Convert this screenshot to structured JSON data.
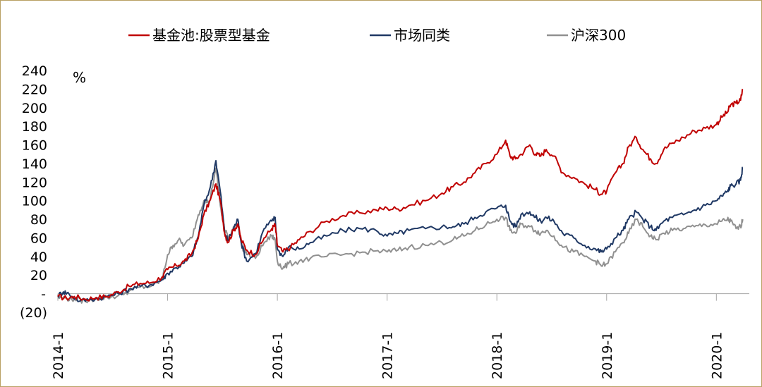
{
  "chart_data": {
    "type": "line",
    "unit_label": "%",
    "y_ticks": [
      "240",
      "220",
      "200",
      "180",
      "160",
      "140",
      "120",
      "100",
      "80",
      "60",
      "40",
      "20",
      "-",
      "(20)"
    ],
    "y_tick_values": [
      240,
      220,
      200,
      180,
      160,
      140,
      120,
      100,
      80,
      60,
      40,
      20,
      0,
      -20
    ],
    "ylim": [
      -20,
      240
    ],
    "x_ticks": [
      "2014-1",
      "2015-1",
      "2016-1",
      "2017-1",
      "2018-1",
      "2019-1",
      "2020-1"
    ],
    "x_tick_values": [
      2014.0,
      2015.0,
      2016.0,
      2017.0,
      2018.0,
      2019.0,
      2020.0
    ],
    "xlim": [
      2014.0,
      2021.0
    ],
    "legend_position": "top",
    "series": [
      {
        "name": "基金池:股票型基金",
        "color": "#c00000",
        "points": [
          [
            2014.0,
            -3
          ],
          [
            2014.08,
            -5
          ],
          [
            2014.15,
            -3
          ],
          [
            2014.25,
            -6
          ],
          [
            2014.35,
            -4
          ],
          [
            2014.45,
            -3
          ],
          [
            2014.55,
            2
          ],
          [
            2014.65,
            8
          ],
          [
            2014.75,
            11
          ],
          [
            2014.85,
            12
          ],
          [
            2014.95,
            18
          ],
          [
            2015.0,
            26
          ],
          [
            2015.08,
            30
          ],
          [
            2015.15,
            35
          ],
          [
            2015.22,
            43
          ],
          [
            2015.28,
            60
          ],
          [
            2015.33,
            85
          ],
          [
            2015.39,
            101
          ],
          [
            2015.44,
            118
          ],
          [
            2015.48,
            100
          ],
          [
            2015.52,
            65
          ],
          [
            2015.55,
            55
          ],
          [
            2015.6,
            68
          ],
          [
            2015.64,
            75
          ],
          [
            2015.67,
            58
          ],
          [
            2015.72,
            47
          ],
          [
            2015.8,
            42
          ],
          [
            2015.88,
            60
          ],
          [
            2015.95,
            70
          ],
          [
            2015.98,
            74
          ],
          [
            2016.0,
            52
          ],
          [
            2016.05,
            45
          ],
          [
            2016.12,
            50
          ],
          [
            2016.2,
            58
          ],
          [
            2016.3,
            67
          ],
          [
            2016.45,
            78
          ],
          [
            2016.6,
            84
          ],
          [
            2016.75,
            87
          ],
          [
            2016.9,
            90
          ],
          [
            2017.0,
            92
          ],
          [
            2017.1,
            91
          ],
          [
            2017.2,
            95
          ],
          [
            2017.35,
            100
          ],
          [
            2017.5,
            108
          ],
          [
            2017.6,
            115
          ],
          [
            2017.7,
            120
          ],
          [
            2017.8,
            130
          ],
          [
            2017.9,
            140
          ],
          [
            2018.0,
            150
          ],
          [
            2018.08,
            165
          ],
          [
            2018.12,
            148
          ],
          [
            2018.17,
            145
          ],
          [
            2018.22,
            150
          ],
          [
            2018.3,
            160
          ],
          [
            2018.35,
            150
          ],
          [
            2018.4,
            148
          ],
          [
            2018.45,
            155
          ],
          [
            2018.52,
            148
          ],
          [
            2018.6,
            130
          ],
          [
            2018.7,
            125
          ],
          [
            2018.8,
            118
          ],
          [
            2018.9,
            112
          ],
          [
            2018.95,
            107
          ],
          [
            2019.0,
            110
          ],
          [
            2019.08,
            130
          ],
          [
            2019.15,
            140
          ],
          [
            2019.2,
            158
          ],
          [
            2019.27,
            168
          ],
          [
            2019.33,
            155
          ],
          [
            2019.4,
            145
          ],
          [
            2019.45,
            140
          ],
          [
            2019.52,
            155
          ],
          [
            2019.6,
            162
          ],
          [
            2019.7,
            168
          ],
          [
            2019.8,
            175
          ],
          [
            2019.9,
            178
          ],
          [
            2020.0,
            182
          ],
          [
            2020.05,
            190
          ],
          [
            2020.1,
            195
          ],
          [
            2020.13,
            203
          ],
          [
            2020.18,
            205
          ],
          [
            2020.22,
            208
          ],
          [
            2020.24,
            220
          ]
        ]
      },
      {
        "name": "市场同类",
        "color": "#1f3864",
        "points": [
          [
            2014.0,
            -2
          ],
          [
            2014.05,
            2
          ],
          [
            2014.1,
            0
          ],
          [
            2014.2,
            -8
          ],
          [
            2014.3,
            -6
          ],
          [
            2014.45,
            -3
          ],
          [
            2014.55,
            0
          ],
          [
            2014.65,
            5
          ],
          [
            2014.75,
            8
          ],
          [
            2014.85,
            10
          ],
          [
            2014.95,
            15
          ],
          [
            2015.0,
            22
          ],
          [
            2015.08,
            28
          ],
          [
            2015.15,
            33
          ],
          [
            2015.22,
            40
          ],
          [
            2015.28,
            62
          ],
          [
            2015.33,
            95
          ],
          [
            2015.39,
            115
          ],
          [
            2015.44,
            143
          ],
          [
            2015.48,
            110
          ],
          [
            2015.52,
            65
          ],
          [
            2015.55,
            57
          ],
          [
            2015.6,
            70
          ],
          [
            2015.64,
            80
          ],
          [
            2015.67,
            55
          ],
          [
            2015.72,
            35
          ],
          [
            2015.8,
            43
          ],
          [
            2015.88,
            70
          ],
          [
            2015.95,
            78
          ],
          [
            2015.98,
            82
          ],
          [
            2016.0,
            48
          ],
          [
            2016.05,
            40
          ],
          [
            2016.1,
            50
          ],
          [
            2016.2,
            48
          ],
          [
            2016.3,
            55
          ],
          [
            2016.45,
            62
          ],
          [
            2016.6,
            68
          ],
          [
            2016.75,
            70
          ],
          [
            2016.9,
            68
          ],
          [
            2017.0,
            62
          ],
          [
            2017.1,
            65
          ],
          [
            2017.2,
            68
          ],
          [
            2017.35,
            70
          ],
          [
            2017.5,
            72
          ],
          [
            2017.6,
            72
          ],
          [
            2017.7,
            75
          ],
          [
            2017.8,
            82
          ],
          [
            2017.9,
            88
          ],
          [
            2018.0,
            92
          ],
          [
            2018.08,
            95
          ],
          [
            2018.12,
            78
          ],
          [
            2018.17,
            72
          ],
          [
            2018.22,
            85
          ],
          [
            2018.3,
            88
          ],
          [
            2018.35,
            82
          ],
          [
            2018.4,
            78
          ],
          [
            2018.45,
            82
          ],
          [
            2018.52,
            78
          ],
          [
            2018.6,
            65
          ],
          [
            2018.7,
            60
          ],
          [
            2018.8,
            52
          ],
          [
            2018.9,
            48
          ],
          [
            2018.95,
            45
          ],
          [
            2019.0,
            48
          ],
          [
            2019.08,
            60
          ],
          [
            2019.15,
            68
          ],
          [
            2019.2,
            80
          ],
          [
            2019.27,
            88
          ],
          [
            2019.33,
            80
          ],
          [
            2019.4,
            72
          ],
          [
            2019.45,
            68
          ],
          [
            2019.52,
            78
          ],
          [
            2019.6,
            82
          ],
          [
            2019.7,
            85
          ],
          [
            2019.8,
            90
          ],
          [
            2019.9,
            95
          ],
          [
            2020.0,
            100
          ],
          [
            2020.05,
            105
          ],
          [
            2020.1,
            110
          ],
          [
            2020.13,
            116
          ],
          [
            2020.18,
            118
          ],
          [
            2020.22,
            122
          ],
          [
            2020.24,
            136
          ]
        ]
      },
      {
        "name": "沪深300",
        "color": "#909090",
        "points": [
          [
            2014.0,
            -4
          ],
          [
            2014.08,
            -5
          ],
          [
            2014.15,
            -6
          ],
          [
            2014.25,
            -8
          ],
          [
            2014.35,
            -5
          ],
          [
            2014.45,
            -4
          ],
          [
            2014.55,
            -2
          ],
          [
            2014.65,
            3
          ],
          [
            2014.75,
            7
          ],
          [
            2014.85,
            8
          ],
          [
            2014.95,
            15
          ],
          [
            2015.0,
            42
          ],
          [
            2015.05,
            52
          ],
          [
            2015.1,
            58
          ],
          [
            2015.15,
            52
          ],
          [
            2015.22,
            60
          ],
          [
            2015.28,
            85
          ],
          [
            2015.33,
            100
          ],
          [
            2015.38,
            98
          ],
          [
            2015.44,
            135
          ],
          [
            2015.48,
            95
          ],
          [
            2015.52,
            68
          ],
          [
            2015.56,
            60
          ],
          [
            2015.6,
            72
          ],
          [
            2015.64,
            75
          ],
          [
            2015.68,
            50
          ],
          [
            2015.73,
            42
          ],
          [
            2015.8,
            38
          ],
          [
            2015.88,
            55
          ],
          [
            2015.95,
            62
          ],
          [
            2015.98,
            58
          ],
          [
            2016.0,
            35
          ],
          [
            2016.05,
            27
          ],
          [
            2016.1,
            32
          ],
          [
            2016.2,
            35
          ],
          [
            2016.3,
            38
          ],
          [
            2016.45,
            40
          ],
          [
            2016.6,
            42
          ],
          [
            2016.75,
            44
          ],
          [
            2016.9,
            46
          ],
          [
            2017.0,
            45
          ],
          [
            2017.1,
            47
          ],
          [
            2017.2,
            50
          ],
          [
            2017.35,
            52
          ],
          [
            2017.5,
            55
          ],
          [
            2017.6,
            58
          ],
          [
            2017.7,
            62
          ],
          [
            2017.8,
            68
          ],
          [
            2017.9,
            74
          ],
          [
            2018.0,
            80
          ],
          [
            2018.08,
            82
          ],
          [
            2018.12,
            68
          ],
          [
            2018.17,
            65
          ],
          [
            2018.22,
            75
          ],
          [
            2018.3,
            72
          ],
          [
            2018.35,
            68
          ],
          [
            2018.4,
            65
          ],
          [
            2018.45,
            68
          ],
          [
            2018.52,
            62
          ],
          [
            2018.6,
            50
          ],
          [
            2018.7,
            45
          ],
          [
            2018.8,
            40
          ],
          [
            2018.9,
            35
          ],
          [
            2018.95,
            30
          ],
          [
            2019.0,
            32
          ],
          [
            2019.08,
            45
          ],
          [
            2019.15,
            55
          ],
          [
            2019.2,
            65
          ],
          [
            2019.27,
            80
          ],
          [
            2019.33,
            72
          ],
          [
            2019.4,
            62
          ],
          [
            2019.45,
            58
          ],
          [
            2019.52,
            65
          ],
          [
            2019.6,
            68
          ],
          [
            2019.7,
            70
          ],
          [
            2019.8,
            72
          ],
          [
            2019.9,
            74
          ],
          [
            2020.0,
            75
          ],
          [
            2020.05,
            78
          ],
          [
            2020.1,
            80
          ],
          [
            2020.13,
            78
          ],
          [
            2020.18,
            70
          ],
          [
            2020.22,
            72
          ],
          [
            2020.24,
            80
          ]
        ]
      }
    ]
  }
}
